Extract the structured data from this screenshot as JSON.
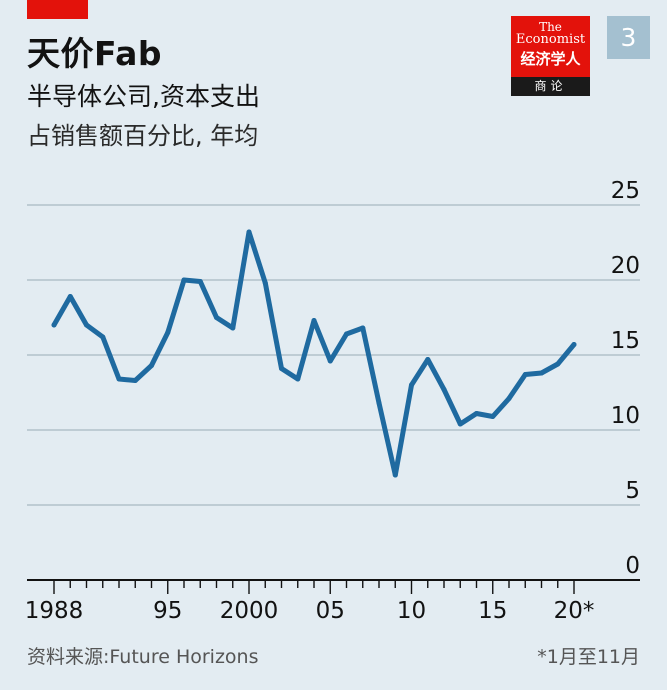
{
  "header": {
    "title": "天价Fab",
    "subtitle": "半导体公司,资本支出",
    "subtitle2": "占销售额百分比, 年均",
    "badge": "3"
  },
  "logo": {
    "line1": "The",
    "line2": "Economist",
    "line3": "经济学人",
    "line4": "商论"
  },
  "footer": {
    "source": "资料来源:Future Horizons",
    "footnote": "*1月至11月"
  },
  "colors": {
    "background": "#e3ecf2",
    "line": "#1f6aa0",
    "grid": "#a7b8c3",
    "accent_red": "#e3120b"
  },
  "chart_data": {
    "type": "line",
    "x": [
      1988,
      1989,
      1990,
      1991,
      1992,
      1993,
      1994,
      1995,
      1996,
      1997,
      1998,
      1999,
      2000,
      2001,
      2002,
      2003,
      2004,
      2005,
      2006,
      2007,
      2008,
      2009,
      2010,
      2011,
      2012,
      2013,
      2014,
      2015,
      2016,
      2017,
      2018,
      2019,
      2020
    ],
    "values": [
      17.0,
      18.9,
      17.0,
      16.2,
      13.4,
      13.3,
      14.3,
      16.5,
      20.0,
      19.9,
      17.5,
      16.8,
      23.2,
      19.8,
      14.1,
      13.4,
      17.3,
      14.6,
      16.4,
      16.8,
      11.8,
      7.0,
      13.0,
      14.7,
      12.7,
      10.4,
      11.1,
      10.9,
      12.1,
      13.7,
      13.8,
      14.4,
      15.7
    ],
    "xticks": [
      1988,
      1995,
      2000,
      2005,
      2010,
      2015,
      2020
    ],
    "xtick_labels": [
      "1988",
      "95",
      "2000",
      "05",
      "10",
      "15",
      "20*"
    ],
    "yticks": [
      0,
      5,
      10,
      15,
      20,
      25
    ],
    "ylim": [
      0,
      25
    ],
    "xlim": [
      1987.8,
      2021
    ],
    "grid": true,
    "ytick_side": "right"
  }
}
